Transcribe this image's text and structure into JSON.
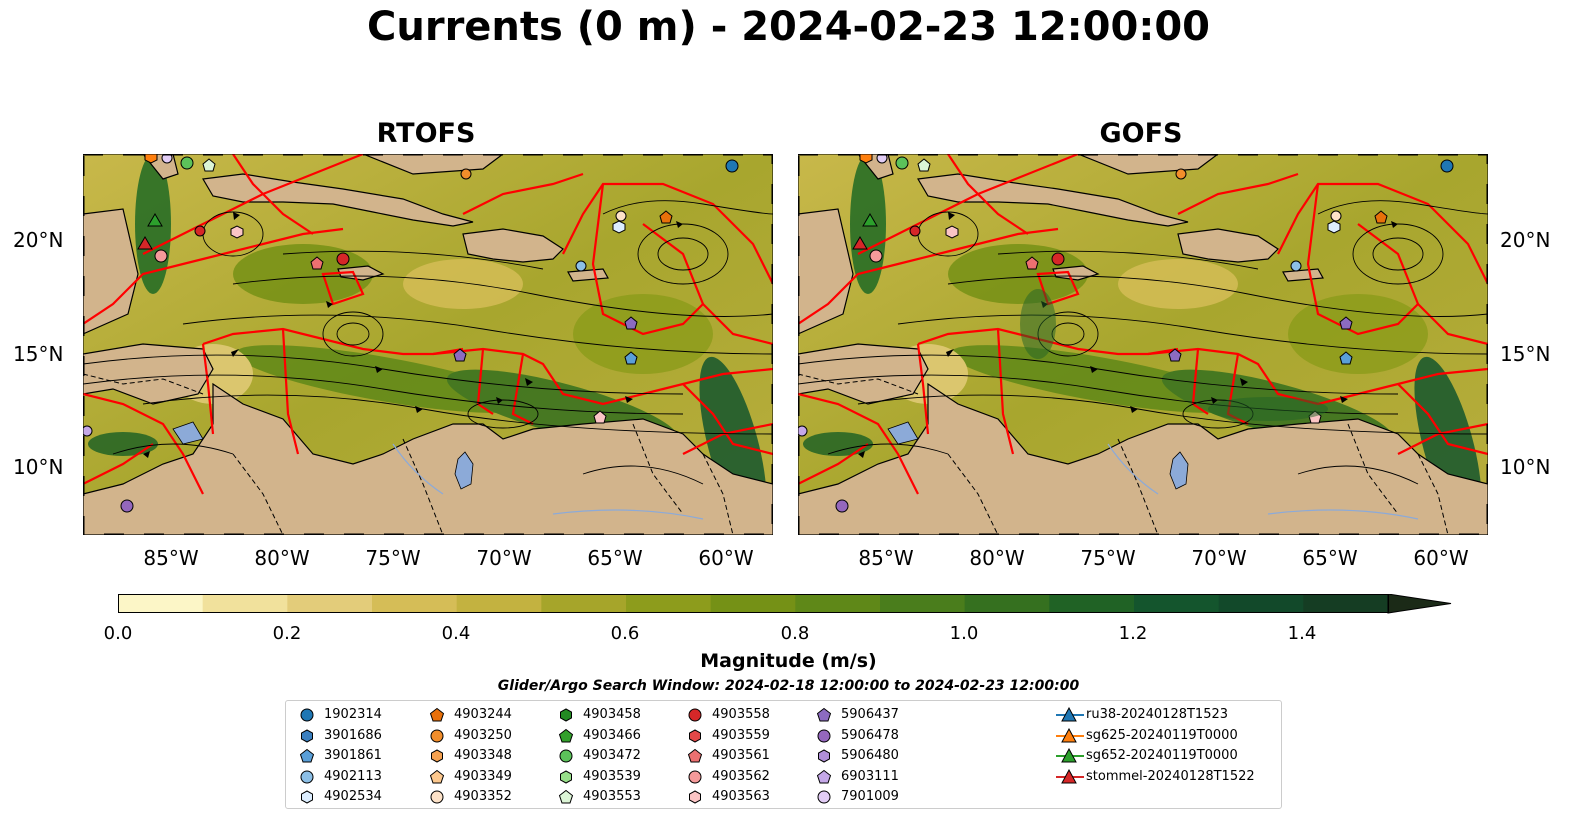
{
  "title": "Currents (0 m) - 2024-02-23 12:00:00",
  "panels": [
    {
      "title": "RTOFS"
    },
    {
      "title": "GOFS"
    }
  ],
  "lat_labels": [
    "20°N",
    "15°N",
    "10°N"
  ],
  "lon_labels": [
    "85°W",
    "80°W",
    "75°W",
    "70°W",
    "65°W",
    "60°W"
  ],
  "map_extent": {
    "lon": [
      -89,
      -58
    ],
    "lat": [
      7,
      24
    ]
  },
  "colorbar": {
    "label": "Magnitude (m/s)",
    "ticks": [
      "0.0",
      "0.2",
      "0.4",
      "0.6",
      "0.8",
      "1.0",
      "1.2",
      "1.4"
    ],
    "range": [
      0,
      1.5
    ],
    "extend": "max",
    "colors": [
      "#fcf6c7",
      "#f1e19c",
      "#e3cc7a",
      "#d5bd57",
      "#c3b240",
      "#a6a52a",
      "#8d9c1c",
      "#759116",
      "#5f8818",
      "#4a7d1c",
      "#35701f",
      "#206225",
      "#14552d",
      "#12492a",
      "#153d23",
      "#17321c",
      "#1b2a17"
    ]
  },
  "colors": {
    "land": "#d2b48c",
    "eez_lines": "#ff0000",
    "streamlines": "#000000",
    "lakes": "#8caad8"
  },
  "search_window": "Glider/Argo Search Window: 2024-02-18 12:00:00 to 2024-02-23 12:00:00",
  "legend": [
    {
      "label": "1902314",
      "marker": "circle",
      "color": "#1f77b4"
    },
    {
      "label": "3901686",
      "marker": "hexagon",
      "color": "#3a7fbf"
    },
    {
      "label": "3901861",
      "marker": "pentagon",
      "color": "#5a9fd8"
    },
    {
      "label": "4902113",
      "marker": "circle",
      "color": "#8cbfe6"
    },
    {
      "label": "4902534",
      "marker": "hexagon",
      "color": "#ddeeff"
    },
    {
      "label": "4903244",
      "marker": "pentagon",
      "color": "#e8700a"
    },
    {
      "label": "4903250",
      "marker": "circle",
      "color": "#f28e2b"
    },
    {
      "label": "4903348",
      "marker": "hexagon",
      "color": "#f5a150"
    },
    {
      "label": "4903349",
      "marker": "pentagon",
      "color": "#fcc88e"
    },
    {
      "label": "4903352",
      "marker": "circle",
      "color": "#fde2c8"
    },
    {
      "label": "4903458",
      "marker": "hexagon",
      "color": "#238b22"
    },
    {
      "label": "4903466",
      "marker": "pentagon",
      "color": "#33a02c"
    },
    {
      "label": "4903472",
      "marker": "circle",
      "color": "#5cc25a"
    },
    {
      "label": "4903539",
      "marker": "hexagon",
      "color": "#98df8a"
    },
    {
      "label": "4903553",
      "marker": "pentagon",
      "color": "#dcf5d6"
    },
    {
      "label": "4903558",
      "marker": "circle",
      "color": "#d62728"
    },
    {
      "label": "4903559",
      "marker": "hexagon",
      "color": "#e34848"
    },
    {
      "label": "4903561",
      "marker": "pentagon",
      "color": "#ec7070"
    },
    {
      "label": "4903562",
      "marker": "circle",
      "color": "#f59a9a"
    },
    {
      "label": "4903563",
      "marker": "hexagon",
      "color": "#fbc5c5"
    },
    {
      "label": "5906437",
      "marker": "pentagon",
      "color": "#8c6bc0"
    },
    {
      "label": "5906478",
      "marker": "circle",
      "color": "#9467bd"
    },
    {
      "label": "5906480",
      "marker": "hexagon",
      "color": "#b08fd8"
    },
    {
      "label": "6903111",
      "marker": "pentagon",
      "color": "#c5a8e8"
    },
    {
      "label": "7901009",
      "marker": "circle",
      "color": "#e2cdf5"
    },
    {
      "label": "ru38-20240128T1523",
      "marker": "triangle-line",
      "color": "#1f77b4"
    },
    {
      "label": "sg625-20240119T0000",
      "marker": "triangle-line",
      "color": "#ff7f0e"
    },
    {
      "label": "sg652-20240119T0000",
      "marker": "triangle-line",
      "color": "#2ca02c"
    },
    {
      "label": "stommel-20240128T1522",
      "marker": "triangle-line",
      "color": "#d62728"
    }
  ]
}
